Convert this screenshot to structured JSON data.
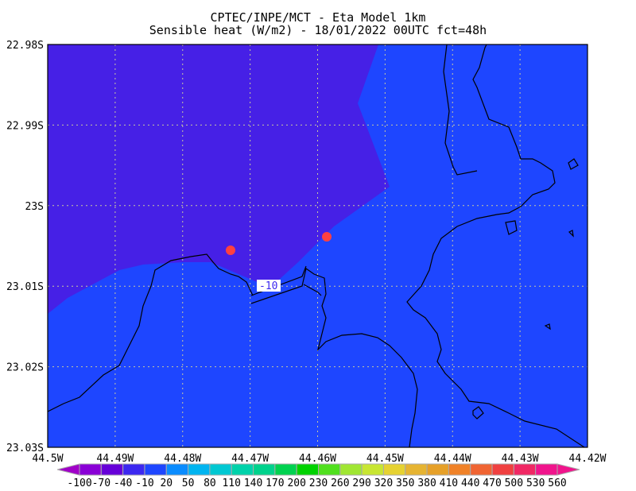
{
  "title": {
    "line1": "CPTEC/INPE/MCT -  Eta Model 1km",
    "line2": "Sensible heat (W/m2) - 18/01/2022 00UTC fct=48h"
  },
  "map": {
    "lat_ticks": [
      "22.98S",
      "22.99S",
      "23S",
      "23.01S",
      "23.02S",
      "23.03S"
    ],
    "lon_ticks": [
      "44.5W",
      "44.49W",
      "44.48W",
      "44.47W",
      "44.46W",
      "44.45W",
      "44.44W",
      "44.43W",
      "44.42W"
    ],
    "contour_label": "-10",
    "colors": {
      "region_low": "#4620e6",
      "region_high": "#1e46ff",
      "markers": "#ff4040",
      "grid": "#c8c8a0"
    }
  },
  "colorbar": {
    "labels": [
      "-100",
      "-70",
      "-40",
      "-10",
      "20",
      "50",
      "80",
      "110",
      "140",
      "170",
      "200",
      "230",
      "260",
      "290",
      "320",
      "350",
      "380",
      "410",
      "440",
      "470",
      "500",
      "530",
      "560"
    ],
    "colors": [
      "#8a00d6",
      "#6600d8",
      "#3c28f0",
      "#1e46ff",
      "#0a8cff",
      "#00b4f0",
      "#00c8d2",
      "#00d2aa",
      "#00d28c",
      "#00d250",
      "#00d200",
      "#50e01e",
      "#a0e632",
      "#c8e632",
      "#e6d232",
      "#e6b432",
      "#e6a028",
      "#f08228",
      "#f06432",
      "#f04040",
      "#f02864",
      "#f0148c"
    ],
    "low_color": "#a000c8",
    "high_color": "#f0148c"
  }
}
